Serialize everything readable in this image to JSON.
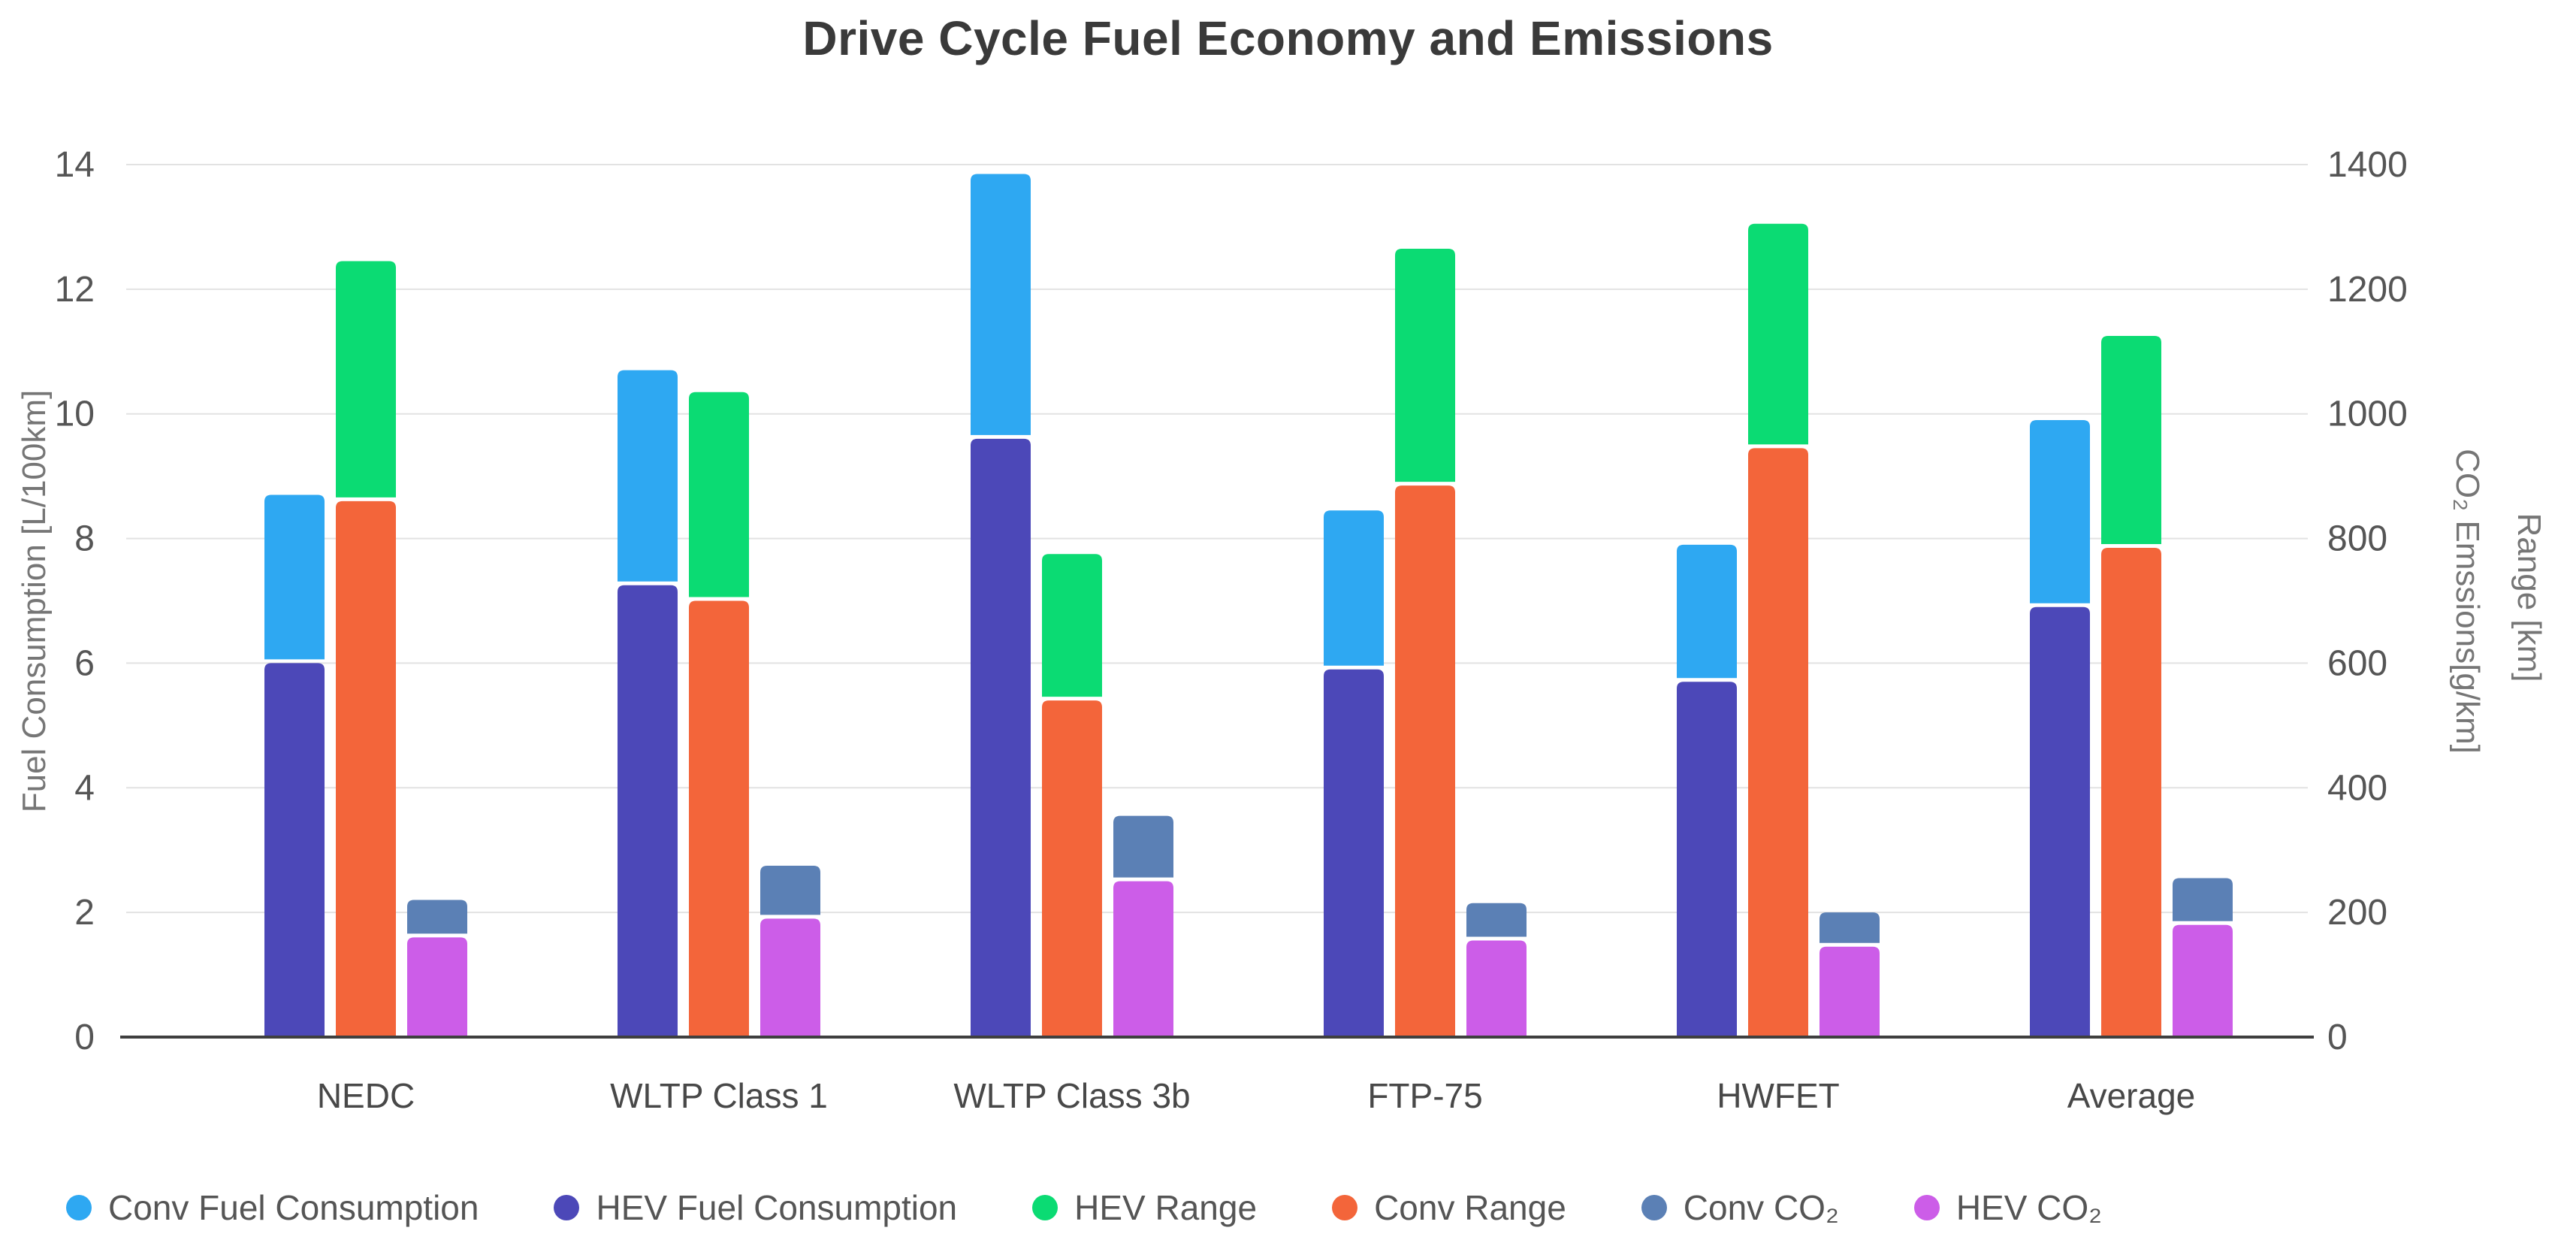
{
  "title": "Drive Cycle Fuel Economy and Emissions",
  "chart_data": {
    "type": "bar",
    "stacked": true,
    "title": "Drive Cycle Fuel Economy and Emissions",
    "categories": [
      "NEDC",
      "WLTP Class 1",
      "WLTP Class 3b",
      "FTP-75",
      "HWFET",
      "Average"
    ],
    "left_axis": {
      "label": "Fuel Consumption [L/100km]",
      "min": 0,
      "max": 14,
      "tick_step": 2,
      "ticks": [
        0,
        2,
        4,
        6,
        8,
        10,
        12,
        14
      ]
    },
    "right_axis": {
      "labels": [
        "CO₂ Emssions[g/km]",
        "Range [km]"
      ],
      "min": 0,
      "max": 1400,
      "tick_step": 200,
      "ticks": [
        0,
        200,
        400,
        600,
        800,
        1000,
        1200,
        1400
      ]
    },
    "grid": true,
    "legend_position": "bottom",
    "series": [
      {
        "name": "Conv Fuel Consumption",
        "axis": "left",
        "color": "#2EA8F2",
        "cumulative": true,
        "values": [
          8.7,
          10.7,
          13.85,
          8.45,
          7.9,
          9.9
        ]
      },
      {
        "name": "HEV Fuel Consumption",
        "axis": "left",
        "color": "#4C48B8",
        "cumulative": false,
        "values": [
          6.0,
          7.25,
          9.6,
          5.9,
          5.7,
          6.9
        ]
      },
      {
        "name": "HEV Range",
        "axis": "right",
        "color": "#0BDB73",
        "cumulative": true,
        "values": [
          1245,
          1035,
          775,
          1265,
          1305,
          1125
        ]
      },
      {
        "name": "Conv Range",
        "axis": "right",
        "color": "#F3653A",
        "cumulative": false,
        "values": [
          860,
          700,
          540,
          885,
          945,
          785
        ]
      },
      {
        "name": "Conv CO₂",
        "axis": "right",
        "color": "#5B80B5",
        "cumulative": true,
        "values": [
          220,
          275,
          355,
          215,
          200,
          255
        ]
      },
      {
        "name": "HEV CO₂",
        "axis": "right",
        "color": "#CC5DE8",
        "cumulative": false,
        "values": [
          160,
          190,
          250,
          155,
          145,
          180
        ]
      }
    ],
    "bars": [
      {
        "bottom": "HEV Fuel Consumption",
        "top": "Conv Fuel Consumption"
      },
      {
        "bottom": "Conv Range",
        "top": "HEV Range"
      },
      {
        "bottom": "HEV CO₂",
        "top": "Conv CO₂"
      }
    ],
    "legend": {
      "items": [
        {
          "label": "Conv Fuel Consumption",
          "color": "#2EA8F2"
        },
        {
          "label": "HEV Fuel Consumption",
          "color": "#4C48B8"
        },
        {
          "label": "HEV Range",
          "color": "#0BDB73"
        },
        {
          "label": "Conv Range",
          "color": "#F3653A"
        },
        {
          "label": "Conv CO₂",
          "color": "#5B80B5"
        },
        {
          "label": "HEV CO₂",
          "color": "#CC5DE8"
        }
      ]
    }
  }
}
